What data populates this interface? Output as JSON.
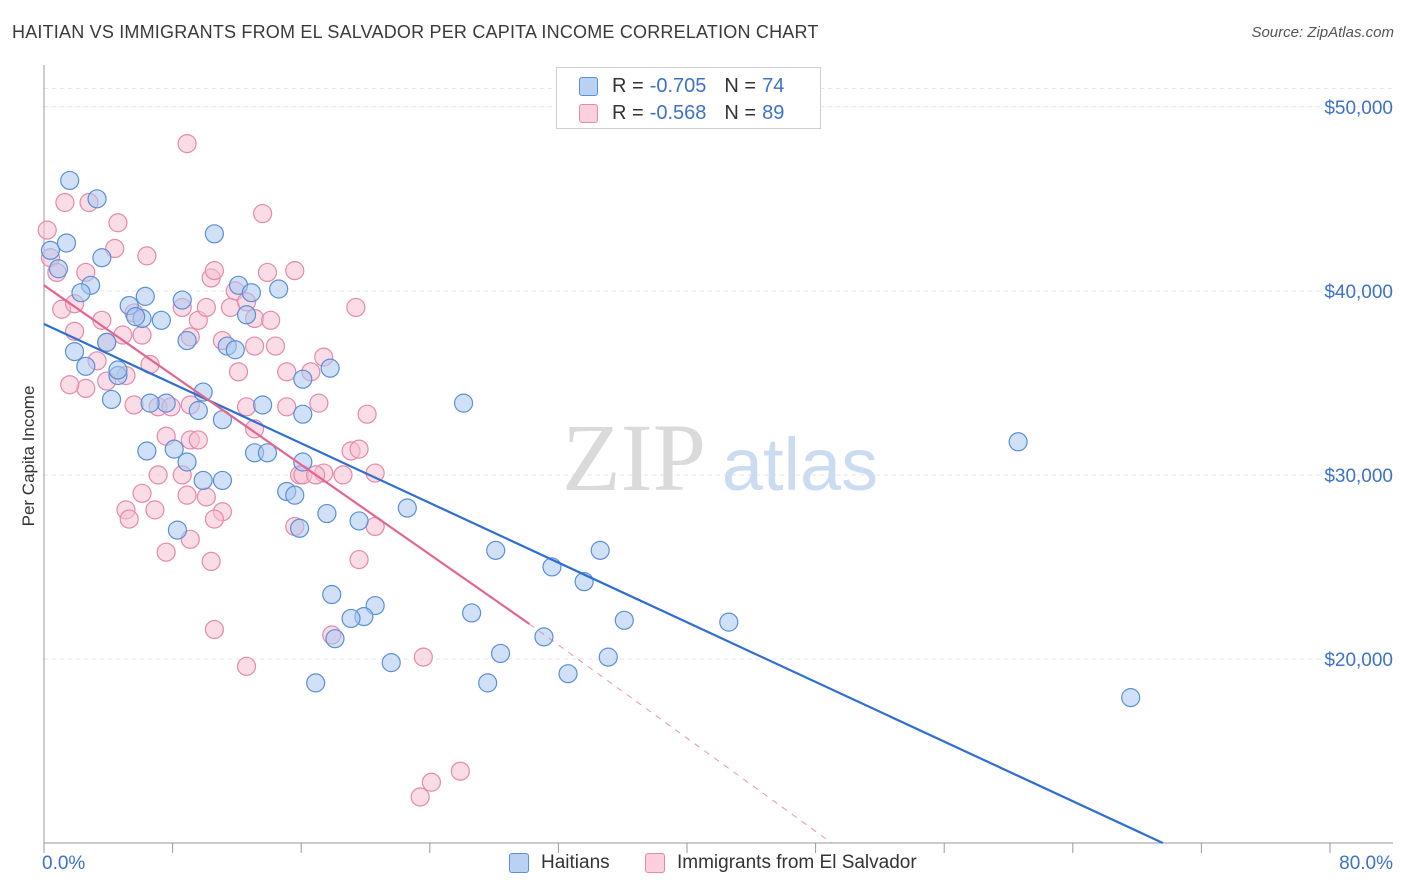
{
  "header": {
    "title": "HAITIAN VS IMMIGRANTS FROM EL SALVADOR PER CAPITA INCOME CORRELATION CHART",
    "source": "Source: ZipAtlas.com"
  },
  "watermark": {
    "zip": "ZIP",
    "atlas": "atlas"
  },
  "legend_top": {
    "rows": [
      {
        "r_label": "R = ",
        "r_value": "-0.705",
        "n_label": "N = ",
        "n_value": "74"
      },
      {
        "r_label": "R = ",
        "r_value": "-0.568",
        "n_label": "N = ",
        "n_value": "89"
      }
    ]
  },
  "legend_bottom": {
    "items": [
      "Haitians",
      "Immigrants from El Salvador"
    ]
  },
  "chart_data": {
    "type": "scatter",
    "title": "HAITIAN VS IMMIGRANTS FROM EL SALVADOR PER CAPITA INCOME CORRELATION CHART",
    "ylabel": "Per Capita Income",
    "xlabel": "",
    "xlim": [
      0,
      80
    ],
    "ylim": [
      10000,
      52000
    ],
    "x_tick_labels": [
      "0.0%",
      "80.0%"
    ],
    "y_ticks": [
      20000,
      30000,
      40000,
      50000
    ],
    "y_tick_labels": [
      "$20,000",
      "$30,000",
      "$40,000",
      "$50,000"
    ],
    "grid": true,
    "legend_position": "top-center",
    "colors": {
      "haitians_fill": "#a9c8f0",
      "haitians_stroke": "#5b8fd6",
      "haitians_line": "#2f6fd0",
      "elsalvador_fill": "#f6bfd1",
      "elsalvador_stroke": "#e48aaa",
      "elsalvador_line": "#e2668f",
      "tick_label": "#3d72c8"
    },
    "series": [
      {
        "name": "Haitians",
        "r": -0.705,
        "n": 74,
        "trend": {
          "x": [
            0,
            69.6
          ],
          "y": [
            38200,
            10000
          ]
        },
        "points": [
          [
            0.4,
            42200
          ],
          [
            1.4,
            42600
          ],
          [
            0.9,
            41200
          ],
          [
            1.6,
            46000
          ],
          [
            3.3,
            45000
          ],
          [
            3.6,
            41800
          ],
          [
            2.9,
            40300
          ],
          [
            2.3,
            39900
          ],
          [
            1.9,
            36700
          ],
          [
            2.6,
            35900
          ],
          [
            3.9,
            37200
          ],
          [
            4.6,
            35400
          ],
          [
            4.6,
            35700
          ],
          [
            4.2,
            34100
          ],
          [
            5.3,
            39200
          ],
          [
            6.3,
            39700
          ],
          [
            6.1,
            38500
          ],
          [
            5.7,
            38600
          ],
          [
            7.3,
            38400
          ],
          [
            8.6,
            39500
          ],
          [
            8.9,
            37300
          ],
          [
            9.6,
            33500
          ],
          [
            10.6,
            43100
          ],
          [
            12.1,
            40300
          ],
          [
            11.4,
            37000
          ],
          [
            11.9,
            36800
          ],
          [
            12.6,
            38700
          ],
          [
            12.9,
            39900
          ],
          [
            14.6,
            40100
          ],
          [
            16.1,
            35200
          ],
          [
            17.8,
            35800
          ],
          [
            13.6,
            33800
          ],
          [
            7.6,
            33900
          ],
          [
            6.6,
            33900
          ],
          [
            9.9,
            34500
          ],
          [
            11.1,
            33000
          ],
          [
            16.1,
            33300
          ],
          [
            6.4,
            31300
          ],
          [
            8.1,
            31400
          ],
          [
            8.9,
            30700
          ],
          [
            9.9,
            29700
          ],
          [
            11.1,
            29700
          ],
          [
            13.1,
            31200
          ],
          [
            13.9,
            31200
          ],
          [
            15.1,
            29100
          ],
          [
            15.6,
            28900
          ],
          [
            16.1,
            30700
          ],
          [
            15.9,
            27100
          ],
          [
            17.6,
            27900
          ],
          [
            19.6,
            27500
          ],
          [
            22.6,
            28200
          ],
          [
            8.3,
            27000
          ],
          [
            26.1,
            33900
          ],
          [
            28.1,
            25900
          ],
          [
            31.6,
            25000
          ],
          [
            33.6,
            24200
          ],
          [
            34.6,
            25900
          ],
          [
            36.1,
            22100
          ],
          [
            35.1,
            20100
          ],
          [
            28.4,
            20300
          ],
          [
            26.6,
            22500
          ],
          [
            20.6,
            22900
          ],
          [
            19.9,
            22300
          ],
          [
            19.1,
            22200
          ],
          [
            18.1,
            21100
          ],
          [
            17.9,
            23500
          ],
          [
            16.9,
            18700
          ],
          [
            21.6,
            19800
          ],
          [
            27.6,
            18700
          ],
          [
            31.1,
            21200
          ],
          [
            32.6,
            19200
          ],
          [
            60.6,
            31800
          ],
          [
            67.6,
            17900
          ],
          [
            42.6,
            22000
          ]
        ]
      },
      {
        "name": "Immigrants from El Salvador",
        "r": -0.568,
        "n": 89,
        "trend": {
          "x": [
            0,
            30.2
          ],
          "y": [
            40300,
            21900
          ]
        },
        "trend_extension": {
          "x": [
            30.2,
            49
          ],
          "y": [
            21900,
            10000
          ]
        },
        "points": [
          [
            0.2,
            43300
          ],
          [
            0.4,
            41800
          ],
          [
            0.8,
            41000
          ],
          [
            1.3,
            44800
          ],
          [
            1.1,
            39000
          ],
          [
            2.6,
            41000
          ],
          [
            2.8,
            44800
          ],
          [
            1.9,
            39300
          ],
          [
            1.9,
            37800
          ],
          [
            3.9,
            37200
          ],
          [
            3.6,
            38400
          ],
          [
            4.4,
            42300
          ],
          [
            4.6,
            43700
          ],
          [
            6.1,
            37600
          ],
          [
            5.6,
            38800
          ],
          [
            6.4,
            41900
          ],
          [
            4.9,
            37600
          ],
          [
            3.3,
            36200
          ],
          [
            2.6,
            34700
          ],
          [
            1.6,
            34900
          ],
          [
            3.9,
            35100
          ],
          [
            5.1,
            35400
          ],
          [
            6.6,
            36000
          ],
          [
            7.1,
            33700
          ],
          [
            7.9,
            33700
          ],
          [
            5.6,
            33800
          ],
          [
            8.6,
            39100
          ],
          [
            9.1,
            37500
          ],
          [
            9.6,
            38400
          ],
          [
            10.1,
            39100
          ],
          [
            10.4,
            40700
          ],
          [
            10.6,
            41100
          ],
          [
            11.6,
            39100
          ],
          [
            11.9,
            40000
          ],
          [
            12.6,
            39400
          ],
          [
            13.1,
            38500
          ],
          [
            13.9,
            41000
          ],
          [
            13.6,
            44200
          ],
          [
            15.6,
            41100
          ],
          [
            15.1,
            35600
          ],
          [
            16.6,
            35600
          ],
          [
            17.4,
            36400
          ],
          [
            17.1,
            33900
          ],
          [
            15.9,
            30000
          ],
          [
            17.4,
            30100
          ],
          [
            16.1,
            30000
          ],
          [
            18.6,
            30000
          ],
          [
            19.1,
            31300
          ],
          [
            19.6,
            31400
          ],
          [
            20.1,
            33300
          ],
          [
            20.6,
            30100
          ],
          [
            19.4,
            39100
          ],
          [
            12.1,
            35600
          ],
          [
            12.6,
            33700
          ],
          [
            13.1,
            32500
          ],
          [
            15.1,
            33700
          ],
          [
            8.6,
            30000
          ],
          [
            8.9,
            28900
          ],
          [
            10.1,
            28800
          ],
          [
            11.1,
            28000
          ],
          [
            10.6,
            27600
          ],
          [
            9.1,
            31900
          ],
          [
            9.6,
            31900
          ],
          [
            7.6,
            32100
          ],
          [
            7.1,
            30000
          ],
          [
            6.9,
            28100
          ],
          [
            5.1,
            28100
          ],
          [
            5.3,
            27600
          ],
          [
            7.6,
            25800
          ],
          [
            9.1,
            26500
          ],
          [
            10.4,
            25300
          ],
          [
            6.1,
            29000
          ],
          [
            15.6,
            27200
          ],
          [
            20.6,
            27200
          ],
          [
            19.6,
            25400
          ],
          [
            17.9,
            21300
          ],
          [
            10.6,
            21600
          ],
          [
            12.6,
            19600
          ],
          [
            23.6,
            20100
          ],
          [
            24.1,
            13300
          ],
          [
            25.9,
            13900
          ],
          [
            23.4,
            12500
          ],
          [
            9.1,
            33800
          ],
          [
            13.1,
            37000
          ],
          [
            14.4,
            37000
          ],
          [
            11.1,
            37300
          ],
          [
            8.9,
            48000
          ],
          [
            14.1,
            38400
          ],
          [
            16.9,
            30000
          ]
        ]
      }
    ]
  }
}
